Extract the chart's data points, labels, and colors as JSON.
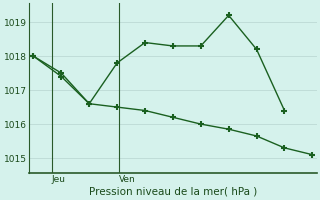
{
  "line1_x": [
    0,
    1,
    2,
    3,
    4,
    5,
    6,
    7,
    8,
    9
  ],
  "line1_y": [
    1018.0,
    1017.5,
    1016.6,
    1017.8,
    1018.4,
    1018.3,
    1018.3,
    1019.2,
    1018.2,
    1016.4
  ],
  "line2_x": [
    0,
    1,
    2,
    3,
    4,
    5,
    6,
    7,
    8,
    9,
    10
  ],
  "line2_y": [
    1018.0,
    1017.4,
    1016.6,
    1016.5,
    1016.4,
    1016.2,
    1016.0,
    1015.85,
    1015.65,
    1015.3,
    1015.1
  ],
  "jeu_x": 0.65,
  "ven_x": 3.05,
  "xlim": [
    -0.15,
    10.15
  ],
  "ylim": [
    1014.55,
    1019.55
  ],
  "yticks": [
    1015,
    1016,
    1017,
    1018,
    1019
  ],
  "xlabel": "Pression niveau de la mer( hPa )",
  "day_labels": [
    "Jeu",
    "Ven"
  ],
  "day_positions": [
    0.65,
    3.05
  ],
  "line_color": "#1a6020",
  "bg_color": "#d5f2ec",
  "grid_color": "#c0ddd8",
  "axis_color": "#2a5a2a",
  "text_color": "#1a4a1a",
  "marker": "+",
  "markersize": 5,
  "markeredgewidth": 1.5,
  "linewidth": 1.0,
  "ytick_fontsize": 6.5,
  "xlabel_fontsize": 7.5,
  "xtick_fontsize": 6.5
}
